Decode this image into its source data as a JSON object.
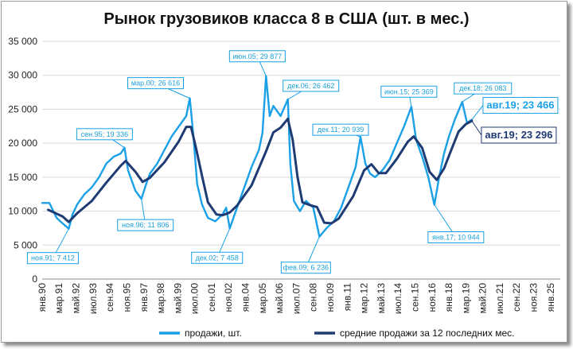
{
  "chart_data": {
    "type": "line",
    "title": "Рынок грузовиков класса 8 в США (шт. в мес.)",
    "xlabel": "",
    "ylabel": "",
    "ylim": [
      0,
      35000
    ],
    "y_ticks": [
      0,
      5000,
      10000,
      15000,
      20000,
      25000,
      30000,
      35000
    ],
    "y_tick_labels": [
      "0",
      "5 000",
      "10 000",
      "15 000",
      "20 000",
      "25 000",
      "30 000",
      "35 000"
    ],
    "x_tick_labels": [
      "янв.90",
      "мар.91",
      "май.92",
      "июл.93",
      "сен.94",
      "ноя.95",
      "янв.97",
      "мар.98",
      "май.99",
      "июл.00",
      "сен.01",
      "ноя.02",
      "янв.04",
      "мар.05",
      "май.06",
      "июл.07",
      "сен.08",
      "ноя.09",
      "янв.11",
      "мар.12",
      "май.13",
      "июл.14",
      "сен.15",
      "ноя.16",
      "янв.18",
      "мар.19",
      "май.20",
      "июл.21",
      "сен.22",
      "ноя.23",
      "янв.25"
    ],
    "x_tick_dates": [
      "1990-01",
      "1991-03",
      "1992-05",
      "1993-07",
      "1994-09",
      "1995-11",
      "1997-01",
      "1998-03",
      "1999-05",
      "2000-07",
      "2001-09",
      "2002-11",
      "2004-01",
      "2005-03",
      "2006-05",
      "2007-07",
      "2008-09",
      "2009-11",
      "2011-01",
      "2012-03",
      "2013-05",
      "2014-07",
      "2015-09",
      "2016-11",
      "2018-01",
      "2019-03",
      "2020-05",
      "2021-07",
      "2022-09",
      "2023-11",
      "2025-01"
    ],
    "grid": true,
    "legend_position": "bottom",
    "colors": {
      "sales": "#1aa0e6",
      "avg": "#1f3b73"
    },
    "series": [
      {
        "name": "продажи, шт.",
        "points": [
          [
            "1990-01",
            11200
          ],
          [
            "1990-07",
            11200
          ],
          [
            "1991-01",
            9000
          ],
          [
            "1991-04",
            8500
          ],
          [
            "1991-11",
            7412
          ],
          [
            "1992-02",
            9500
          ],
          [
            "1992-06",
            11000
          ],
          [
            "1992-12",
            12500
          ],
          [
            "1993-06",
            13500
          ],
          [
            "1993-12",
            15000
          ],
          [
            "1994-06",
            17000
          ],
          [
            "1994-12",
            18000
          ],
          [
            "1995-06",
            18500
          ],
          [
            "1995-09",
            19336
          ],
          [
            "1995-12",
            16000
          ],
          [
            "1996-03",
            14500
          ],
          [
            "1996-06",
            13000
          ],
          [
            "1996-11",
            11806
          ],
          [
            "1997-03",
            14000
          ],
          [
            "1997-06",
            15500
          ],
          [
            "1997-12",
            17000
          ],
          [
            "1998-06",
            19000
          ],
          [
            "1998-12",
            21000
          ],
          [
            "1999-06",
            22500
          ],
          [
            "1999-12",
            24000
          ],
          [
            "2000-03",
            26616
          ],
          [
            "2000-06",
            21000
          ],
          [
            "2000-09",
            14000
          ],
          [
            "2001-01",
            11000
          ],
          [
            "2001-06",
            9000
          ],
          [
            "2001-12",
            8500
          ],
          [
            "2002-06",
            9500
          ],
          [
            "2002-09",
            10500
          ],
          [
            "2002-12",
            7458
          ],
          [
            "2003-06",
            10500
          ],
          [
            "2003-12",
            13500
          ],
          [
            "2004-06",
            16500
          ],
          [
            "2004-12",
            19000
          ],
          [
            "2005-03",
            21500
          ],
          [
            "2005-06",
            29877
          ],
          [
            "2005-09",
            24000
          ],
          [
            "2005-12",
            25500
          ],
          [
            "2006-06",
            24000
          ],
          [
            "2006-12",
            26462
          ],
          [
            "2007-02",
            17000
          ],
          [
            "2007-05",
            11500
          ],
          [
            "2007-10",
            10000
          ],
          [
            "2008-03",
            11500
          ],
          [
            "2008-09",
            10500
          ],
          [
            "2009-02",
            6236
          ],
          [
            "2009-08",
            7500
          ],
          [
            "2010-02",
            8500
          ],
          [
            "2010-08",
            10500
          ],
          [
            "2011-02",
            13500
          ],
          [
            "2011-08",
            16500
          ],
          [
            "2011-12",
            20939
          ],
          [
            "2012-04",
            17000
          ],
          [
            "2012-08",
            15500
          ],
          [
            "2012-12",
            15000
          ],
          [
            "2013-06",
            16000
          ],
          [
            "2013-12",
            17500
          ],
          [
            "2014-06",
            20000
          ],
          [
            "2014-12",
            22500
          ],
          [
            "2015-06",
            25369
          ],
          [
            "2015-10",
            20500
          ],
          [
            "2016-03",
            18000
          ],
          [
            "2016-08",
            15000
          ],
          [
            "2017-01",
            10944
          ],
          [
            "2017-05",
            15000
          ],
          [
            "2017-09",
            18500
          ],
          [
            "2018-01",
            21000
          ],
          [
            "2018-06",
            23500
          ],
          [
            "2018-12",
            26083
          ],
          [
            "2019-04",
            23000
          ],
          [
            "2019-08",
            23466
          ]
        ]
      },
      {
        "name": "средние продажи за 12 последних мес.",
        "points": [
          [
            "1990-06",
            10200
          ],
          [
            "1991-06",
            9200
          ],
          [
            "1991-11",
            8400
          ],
          [
            "1992-06",
            9700
          ],
          [
            "1993-06",
            11500
          ],
          [
            "1994-06",
            14200
          ],
          [
            "1995-06",
            16700
          ],
          [
            "1995-10",
            17400
          ],
          [
            "1996-06",
            15800
          ],
          [
            "1996-12",
            14300
          ],
          [
            "1997-06",
            14900
          ],
          [
            "1998-06",
            17200
          ],
          [
            "1999-06",
            20300
          ],
          [
            "1999-12",
            22400
          ],
          [
            "2000-04",
            22400
          ],
          [
            "2000-08",
            19400
          ],
          [
            "2001-01",
            15200
          ],
          [
            "2001-06",
            11300
          ],
          [
            "2002-01",
            9500
          ],
          [
            "2002-06",
            9400
          ],
          [
            "2002-12",
            9800
          ],
          [
            "2003-06",
            10800
          ],
          [
            "2004-06",
            13800
          ],
          [
            "2005-06",
            18800
          ],
          [
            "2005-12",
            21600
          ],
          [
            "2006-06",
            22300
          ],
          [
            "2006-12",
            23600
          ],
          [
            "2007-04",
            20500
          ],
          [
            "2007-08",
            15000
          ],
          [
            "2007-12",
            11300
          ],
          [
            "2008-06",
            10900
          ],
          [
            "2008-12",
            10600
          ],
          [
            "2009-06",
            8300
          ],
          [
            "2009-12",
            8200
          ],
          [
            "2010-06",
            8900
          ],
          [
            "2011-06",
            12200
          ],
          [
            "2012-03",
            16000
          ],
          [
            "2012-09",
            16900
          ],
          [
            "2013-03",
            15600
          ],
          [
            "2013-09",
            15600
          ],
          [
            "2014-06",
            17700
          ],
          [
            "2015-03",
            20200
          ],
          [
            "2015-08",
            21000
          ],
          [
            "2016-03",
            19300
          ],
          [
            "2016-09",
            15800
          ],
          [
            "2017-03",
            14600
          ],
          [
            "2017-09",
            16300
          ],
          [
            "2018-03",
            19000
          ],
          [
            "2018-09",
            21700
          ],
          [
            "2019-03",
            22800
          ],
          [
            "2019-08",
            23296
          ]
        ]
      }
    ],
    "annotations": [
      {
        "label": "ноя.91; 7 412",
        "x": "1991-11",
        "y": 7412,
        "series": "продажи, шт."
      },
      {
        "label": "сен.95; 19 336",
        "x": "1995-09",
        "y": 19336,
        "series": "продажи, шт."
      },
      {
        "label": "ноя.96; 11 806",
        "x": "1996-11",
        "y": 11806,
        "series": "продажи, шт."
      },
      {
        "label": "мар.00; 26 616",
        "x": "2000-03",
        "y": 26616,
        "series": "продажи, шт."
      },
      {
        "label": "дек.02; 7 458",
        "x": "2002-12",
        "y": 7458,
        "series": "продажи, шт."
      },
      {
        "label": "июн.05; 29 877",
        "x": "2005-06",
        "y": 29877,
        "series": "продажи, шт."
      },
      {
        "label": "дек.06; 26 462",
        "x": "2006-12",
        "y": 26462,
        "series": "продажи, шт."
      },
      {
        "label": "фев.09; 6 236",
        "x": "2009-02",
        "y": 6236,
        "series": "продажи, шт."
      },
      {
        "label": "дек.11; 20 939",
        "x": "2011-12",
        "y": 20939,
        "series": "продажи, шт."
      },
      {
        "label": "июн.15; 25 369",
        "x": "2015-06",
        "y": 25369,
        "series": "продажи, шт."
      },
      {
        "label": "янв.17; 10 944",
        "x": "2017-01",
        "y": 10944,
        "series": "продажи, шт."
      },
      {
        "label": "дек.18; 26 083",
        "x": "2018-12",
        "y": 26083,
        "series": "продажи, шт."
      },
      {
        "label": "авг.19; 23 466",
        "x": "2019-08",
        "y": 23466,
        "series": "продажи, шт."
      },
      {
        "label": "авг.19; 23 296",
        "x": "2019-08",
        "y": 23296,
        "series": "средние продажи за 12 последних мес."
      }
    ]
  }
}
